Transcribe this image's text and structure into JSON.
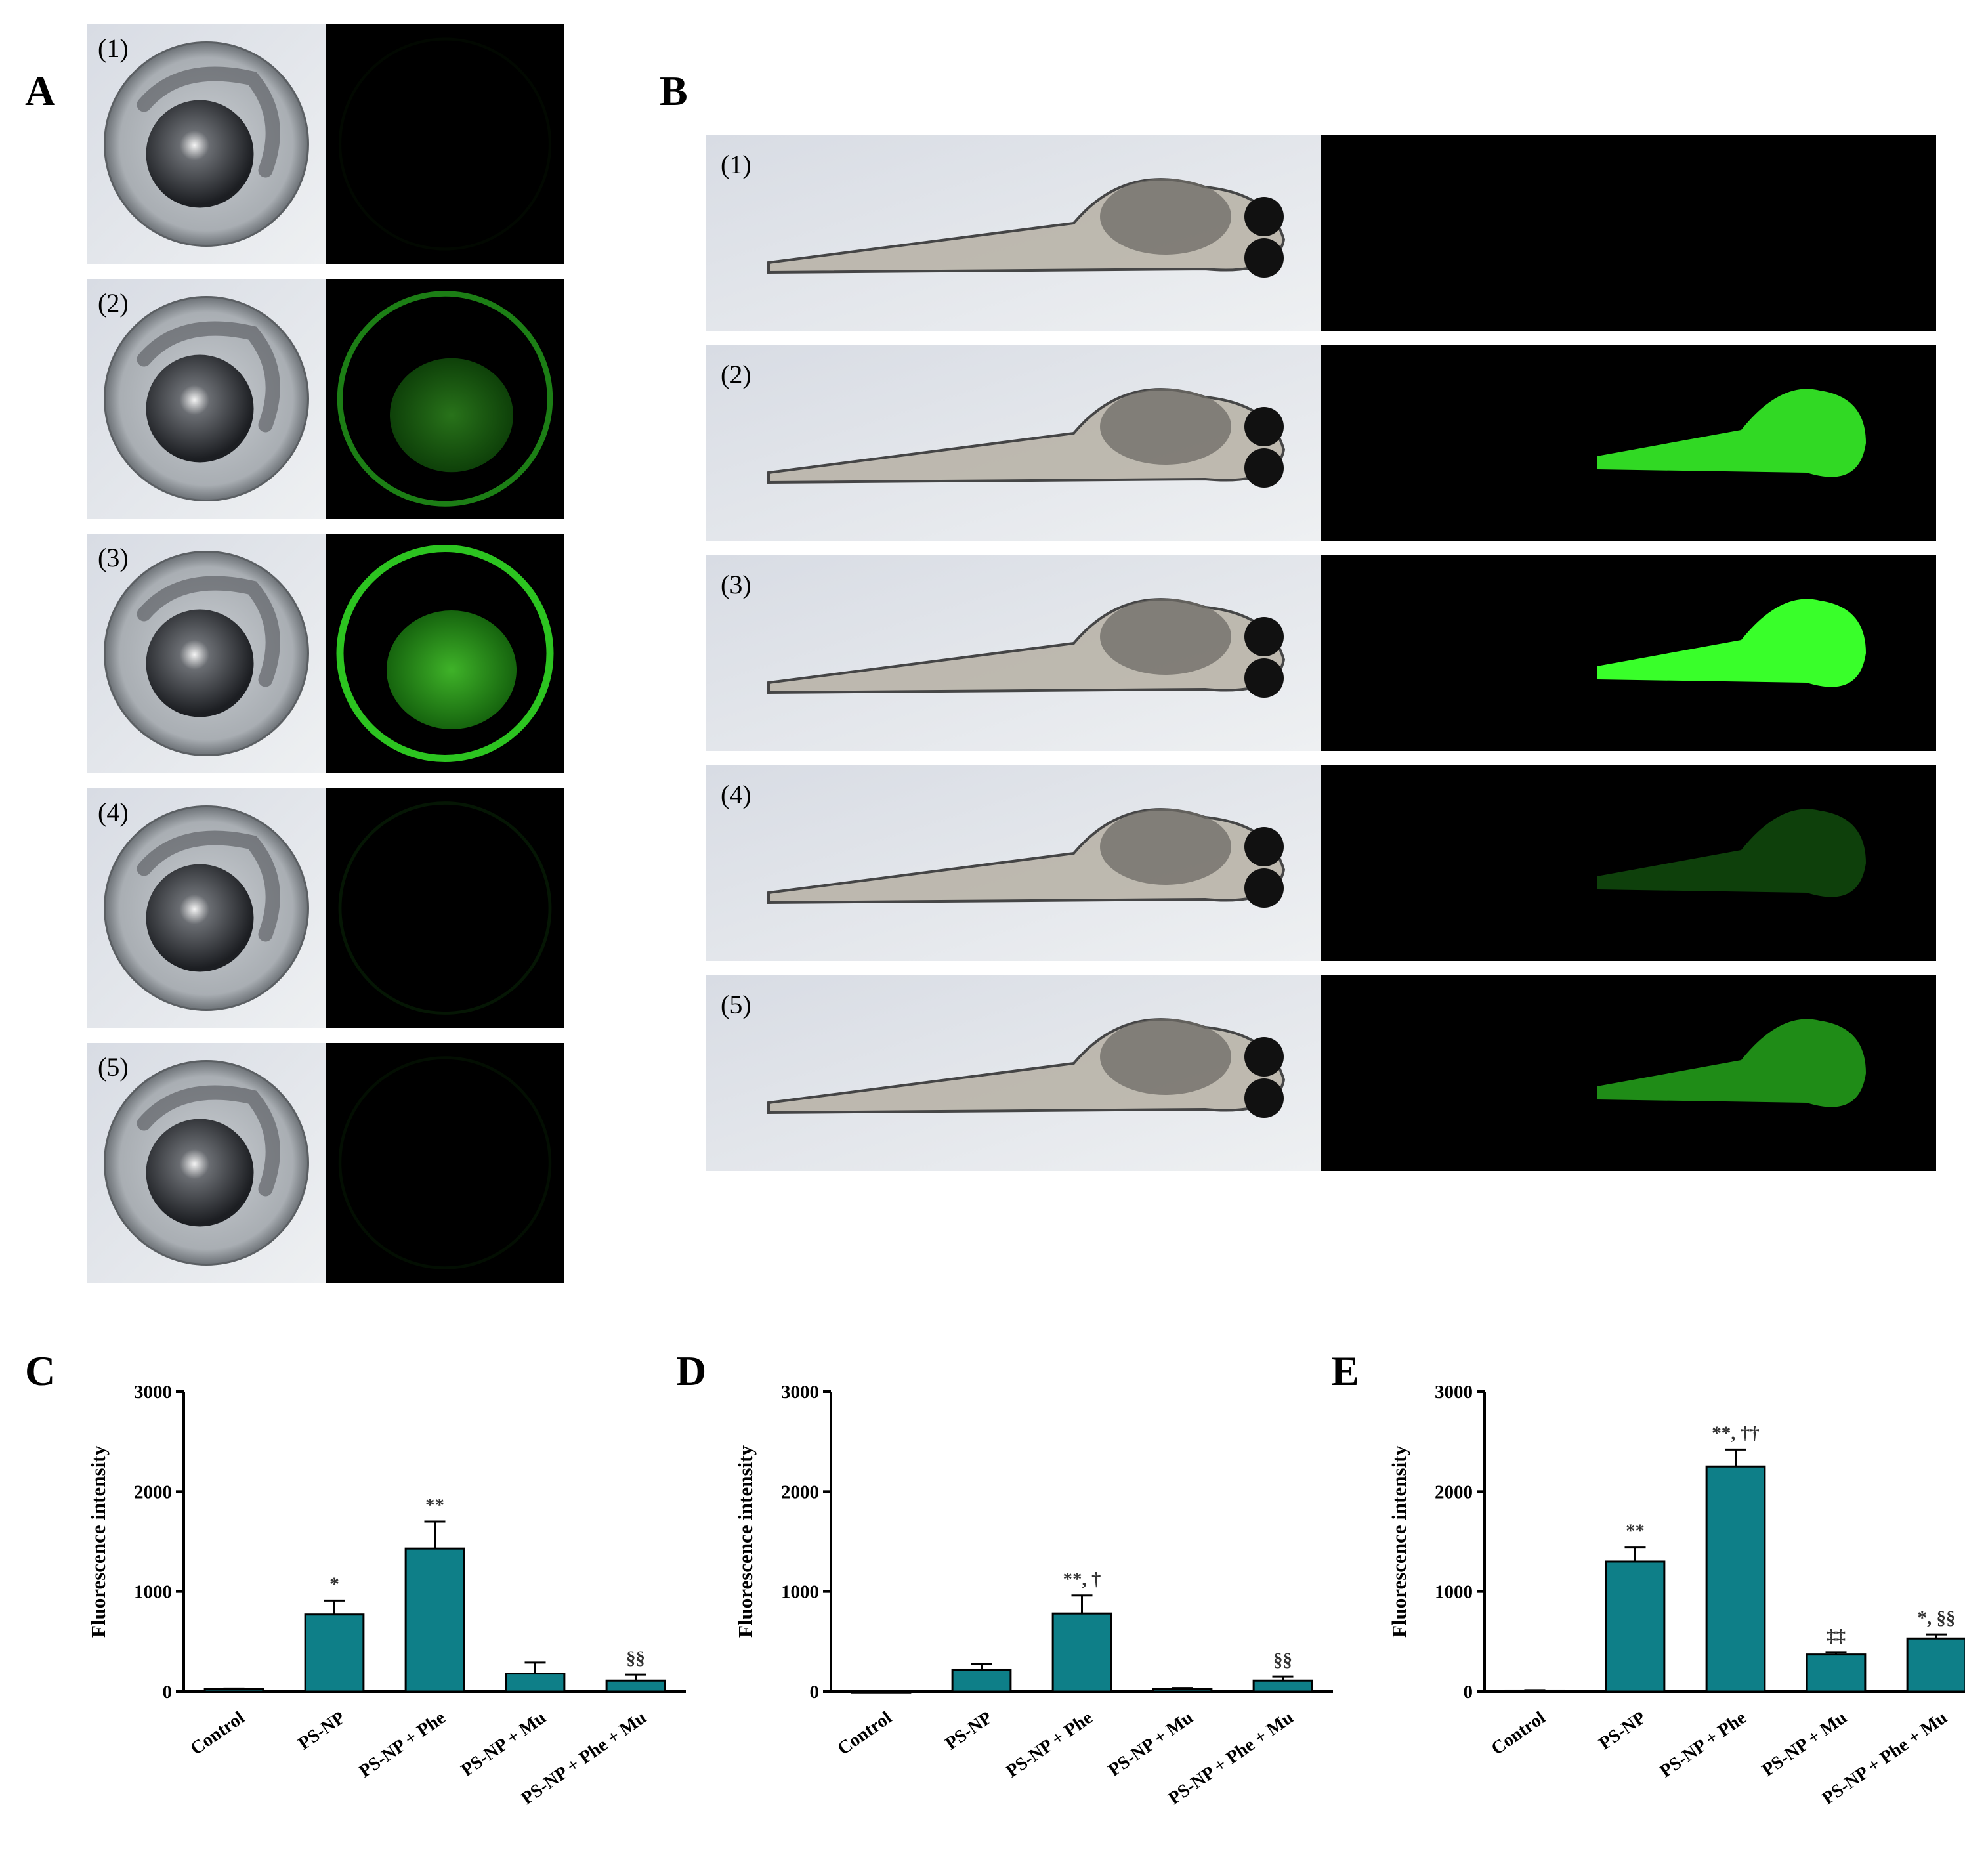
{
  "figure": {
    "panel_labels": [
      "A",
      "B",
      "C",
      "D",
      "E"
    ],
    "panel_a": {
      "rows": [
        {
          "label": "(1)",
          "fluorescence": 0.03
        },
        {
          "label": "(2)",
          "fluorescence": 0.45
        },
        {
          "label": "(3)",
          "fluorescence": 0.7
        },
        {
          "label": "(4)",
          "fluorescence": 0.08
        },
        {
          "label": "(5)",
          "fluorescence": 0.05
        }
      ]
    },
    "panel_b": {
      "rows": [
        {
          "label": "(1)",
          "fluorescence": 0.0
        },
        {
          "label": "(2)",
          "fluorescence": 0.85
        },
        {
          "label": "(3)",
          "fluorescence": 1.0
        },
        {
          "label": "(4)",
          "fluorescence": 0.25
        },
        {
          "label": "(5)",
          "fluorescence": 0.55
        }
      ]
    }
  },
  "colors": {
    "bar": "#0e7f88",
    "brightfield_bg": "#dfe3e8",
    "fluorescence_bg": "#000000",
    "fluorescence_signal": "#39ff2a"
  },
  "chart_data": [
    {
      "panel": "C",
      "type": "bar",
      "categories": [
        "Control",
        "PS-NP",
        "PS-NP + Phe",
        "PS-NP + Mu",
        "PS-NP + Phe + Mu"
      ],
      "values": [
        25,
        770,
        1430,
        180,
        110
      ],
      "errors": [
        5,
        140,
        270,
        110,
        60
      ],
      "annotations": [
        "",
        "*",
        "**",
        "",
        "§§"
      ],
      "ylabel": "Fluorescence intensity",
      "ylim": [
        0,
        3000
      ],
      "yticks": [
        "0",
        "1000",
        "2000",
        "3000"
      ]
    },
    {
      "panel": "D",
      "type": "bar",
      "categories": [
        "Control",
        "PS-NP",
        "PS-NP + Phe",
        "PS-NP + Mu",
        "PS-NP + Phe + Mu"
      ],
      "values": [
        5,
        220,
        780,
        25,
        110
      ],
      "errors": [
        3,
        55,
        180,
        10,
        40
      ],
      "annotations": [
        "",
        "",
        "**, †",
        "",
        "§§"
      ],
      "ylabel": "Fluorescence intensity",
      "ylim": [
        0,
        3000
      ],
      "yticks": [
        "0",
        "1000",
        "2000",
        "3000"
      ]
    },
    {
      "panel": "E",
      "type": "bar",
      "categories": [
        "Control",
        "PS-NP",
        "PS-NP + Phe",
        "PS-NP + Mu",
        "PS-NP + Phe + Mu"
      ],
      "values": [
        10,
        1300,
        2250,
        370,
        530
      ],
      "errors": [
        4,
        140,
        170,
        25,
        40
      ],
      "annotations": [
        "",
        "**",
        "**, ††",
        "‡‡",
        "*, §§"
      ],
      "ylabel": "Fluorescence intensity",
      "ylim": [
        0,
        3000
      ],
      "yticks": [
        "0",
        "1000",
        "2000",
        "3000"
      ]
    }
  ]
}
